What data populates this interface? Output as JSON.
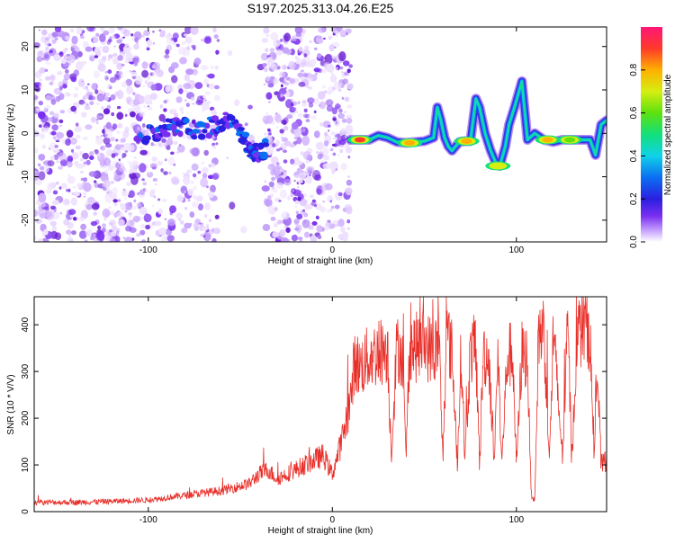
{
  "title": "S197.2025.313.04.26.E25",
  "colors": {
    "snr_line": "#e8302a",
    "spectro_scatter": "#6a1fd6"
  },
  "chart_data": [
    {
      "type": "heatmap",
      "name": "spectrogram",
      "xlabel": "Height of straight line (km)",
      "ylabel": "Frequency (Hz)",
      "xlim": [
        -162,
        149
      ],
      "ylim": [
        -25,
        24.5
      ],
      "xticks": [
        -100,
        0,
        100
      ],
      "xtick_labels": [
        "-100",
        "0",
        "100"
      ],
      "yticks": [
        -20,
        -10,
        0,
        10,
        20
      ],
      "ytick_labels": [
        "-20",
        "-10",
        "0",
        "10",
        "20"
      ],
      "colorbar": {
        "label": "Normalized spectral amplitude",
        "range": [
          0,
          1
        ],
        "ticks": [
          0.0,
          0.2,
          0.4,
          0.6,
          0.8
        ],
        "tick_labels": [
          "0.0",
          "0.2",
          "0.4",
          "0.6",
          "0.8"
        ]
      },
      "noise_regions": [
        {
          "x": [
            -162,
            -104
          ],
          "density": 1.0
        },
        {
          "x": [
            -104,
            -62
          ],
          "density": 0.7
        },
        {
          "x": [
            -62,
            -37
          ],
          "density": 0.05
        },
        {
          "x": [
            -37,
            10
          ],
          "density": 1.0
        }
      ],
      "ridge_track": [
        [
          -106,
          -1.5
        ],
        [
          -95,
          0.5
        ],
        [
          -85,
          2
        ],
        [
          -75,
          1
        ],
        [
          -65,
          1.5
        ],
        [
          -58,
          3
        ],
        [
          -50,
          0
        ],
        [
          -44,
          -4
        ],
        [
          -40,
          -5
        ],
        [
          -36,
          -3
        ]
      ],
      "signal_track": [
        [
          10,
          -1.5
        ],
        [
          20,
          -1.5
        ],
        [
          25,
          -0.5
        ],
        [
          30,
          -1
        ],
        [
          35,
          -2
        ],
        [
          40,
          -2.2
        ],
        [
          45,
          -2
        ],
        [
          50,
          -1.8
        ],
        [
          55,
          -1
        ],
        [
          57,
          6
        ],
        [
          59,
          3
        ],
        [
          61,
          -1
        ],
        [
          63,
          -3
        ],
        [
          65,
          -4
        ],
        [
          67,
          -3
        ],
        [
          69,
          -2
        ],
        [
          72,
          -1.8
        ],
        [
          75,
          -1.8
        ],
        [
          78,
          8
        ],
        [
          80,
          6
        ],
        [
          83,
          0
        ],
        [
          86,
          -4
        ],
        [
          89,
          -7
        ],
        [
          91,
          -7.5
        ],
        [
          94,
          -3
        ],
        [
          96,
          2
        ],
        [
          99,
          6
        ],
        [
          101,
          9
        ],
        [
          103,
          12
        ],
        [
          106,
          -1.5
        ],
        [
          110,
          0
        ],
        [
          115,
          -1.5
        ],
        [
          120,
          -2
        ],
        [
          125,
          -1.5
        ],
        [
          130,
          -1.5
        ],
        [
          135,
          -1.5
        ],
        [
          140,
          -1.5
        ],
        [
          143,
          -5
        ],
        [
          146,
          2
        ],
        [
          149,
          3
        ]
      ],
      "signal_peaks": [
        {
          "x": 15,
          "y": -1.5,
          "amp": 0.9
        },
        {
          "x": 42,
          "y": -2.2,
          "amp": 0.85
        },
        {
          "x": 73,
          "y": -1.8,
          "amp": 0.8
        },
        {
          "x": 90,
          "y": -7.5,
          "amp": 0.78
        },
        {
          "x": 117,
          "y": -1.5,
          "amp": 0.8
        },
        {
          "x": 129,
          "y": -1.5,
          "amp": 0.6
        }
      ]
    },
    {
      "type": "line",
      "name": "snr",
      "xlabel": "Height of straight line (km)",
      "ylabel": "SNR (10 * V/V)",
      "xlim": [
        -162,
        149
      ],
      "ylim": [
        0,
        460
      ],
      "xticks": [
        -100,
        0,
        100
      ],
      "xtick_labels": [
        "-100",
        "0",
        "100"
      ],
      "yticks": [
        0,
        100,
        200,
        300,
        400
      ],
      "ytick_labels": [
        "0",
        "100",
        "200",
        "300",
        "400"
      ],
      "series": [
        {
          "name": "SNR",
          "x": [
            -162,
            -140,
            -120,
            -100,
            -90,
            -80,
            -70,
            -60,
            -55,
            -50,
            -45,
            -40,
            -35,
            -30,
            -25,
            -20,
            -15,
            -10,
            -5,
            0,
            5,
            10,
            12,
            15,
            20,
            25,
            30,
            32,
            35,
            38,
            40,
            42,
            45,
            50,
            55,
            58,
            60,
            62,
            65,
            68,
            70,
            72,
            75,
            78,
            80,
            82,
            85,
            88,
            90,
            92,
            95,
            98,
            100,
            103,
            106,
            108,
            110,
            112,
            115,
            118,
            120,
            125,
            128,
            130,
            133,
            135,
            138,
            140,
            142,
            144,
            146,
            149
          ],
          "y": [
            20,
            20,
            22,
            25,
            30,
            35,
            40,
            45,
            50,
            55,
            60,
            80,
            90,
            70,
            80,
            90,
            100,
            110,
            120,
            80,
            150,
            240,
            320,
            310,
            330,
            340,
            350,
            120,
            350,
            340,
            110,
            360,
            350,
            360,
            340,
            360,
            110,
            380,
            340,
            100,
            350,
            110,
            340,
            350,
            100,
            340,
            330,
            110,
            340,
            100,
            330,
            340,
            100,
            340,
            330,
            40,
            20,
            380,
            390,
            110,
            380,
            120,
            400,
            110,
            380,
            390,
            400,
            380,
            120,
            300,
            100,
            110
          ]
        }
      ]
    }
  ]
}
